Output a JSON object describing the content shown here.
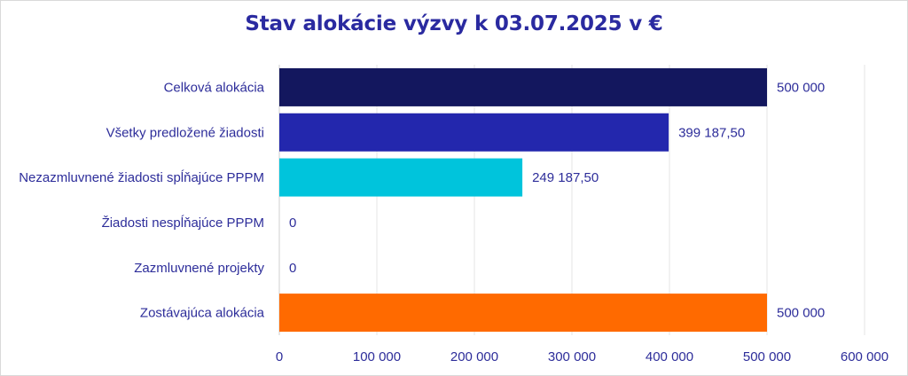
{
  "chart_data": {
    "type": "bar",
    "orientation": "horizontal",
    "title": "Stav alokácie výzvy k 03.07.2025 v €",
    "categories": [
      "Celková alokácia",
      "Všetky predložené žiadosti",
      "Nezazmluvnené žiadosti spĺňajúce PPPM",
      "Žiadosti nespĺňajúce PPPM",
      "Zazmluvnené projekty",
      "Zostávajúca alokácia"
    ],
    "values": [
      500000,
      399187.5,
      249187.5,
      0,
      0,
      500000
    ],
    "value_labels": [
      "500 000",
      "399 187,50",
      "249 187,50",
      "0",
      "0",
      "500 000"
    ],
    "colors": [
      "#13175e",
      "#2327ad",
      "#00c4dc",
      "#2327ad",
      "#2327ad",
      "#ff6a00"
    ],
    "xlim": [
      0,
      600000
    ],
    "xticks": [
      0,
      100000,
      200000,
      300000,
      400000,
      500000,
      600000
    ],
    "xtick_labels": [
      "0",
      "100 000",
      "200 000",
      "300 000",
      "400 000",
      "500 000",
      "600 000"
    ],
    "grid": true,
    "legend": "none"
  }
}
